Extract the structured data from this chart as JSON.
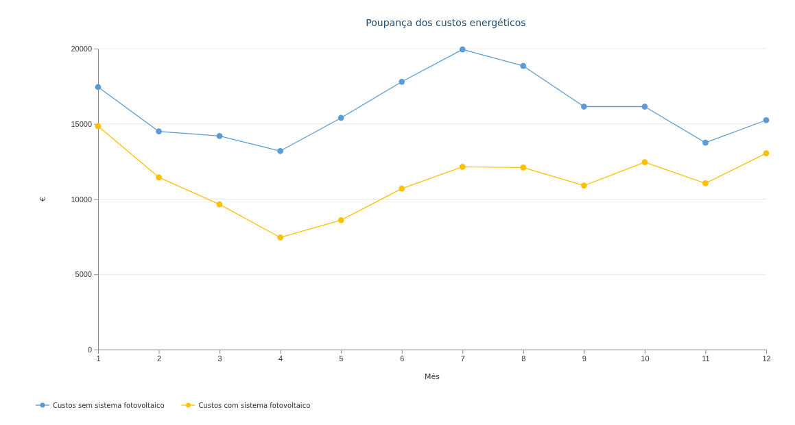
{
  "chart_data": {
    "type": "line",
    "title": "Poupança dos custos energéticos",
    "xlabel": "Mês",
    "ylabel": "€",
    "x": [
      1,
      2,
      3,
      4,
      5,
      6,
      7,
      8,
      9,
      10,
      11,
      12
    ],
    "xlim": [
      1,
      12
    ],
    "xticks": [
      1,
      2,
      3,
      4,
      5,
      6,
      7,
      8,
      9,
      10,
      11,
      12
    ],
    "ylim": [
      0,
      20000
    ],
    "yticks": [
      0,
      5000,
      10000,
      15000,
      20000
    ],
    "grid": "y",
    "legend": "bottom left",
    "marker": "circle",
    "line_style": "solid",
    "series": [
      {
        "name": "Custos sem sistema fotovoltaico",
        "color": "#5b9bd5",
        "values": [
          17450,
          14500,
          14200,
          13200,
          15400,
          17800,
          19950,
          18850,
          16150,
          16150,
          13750,
          15250
        ]
      },
      {
        "name": "Custos com sistema fotovoltaico",
        "color": "#ffc000",
        "values": [
          14850,
          11450,
          9650,
          7450,
          8600,
          10700,
          12150,
          12100,
          10900,
          12450,
          11050,
          13050
        ]
      }
    ]
  }
}
